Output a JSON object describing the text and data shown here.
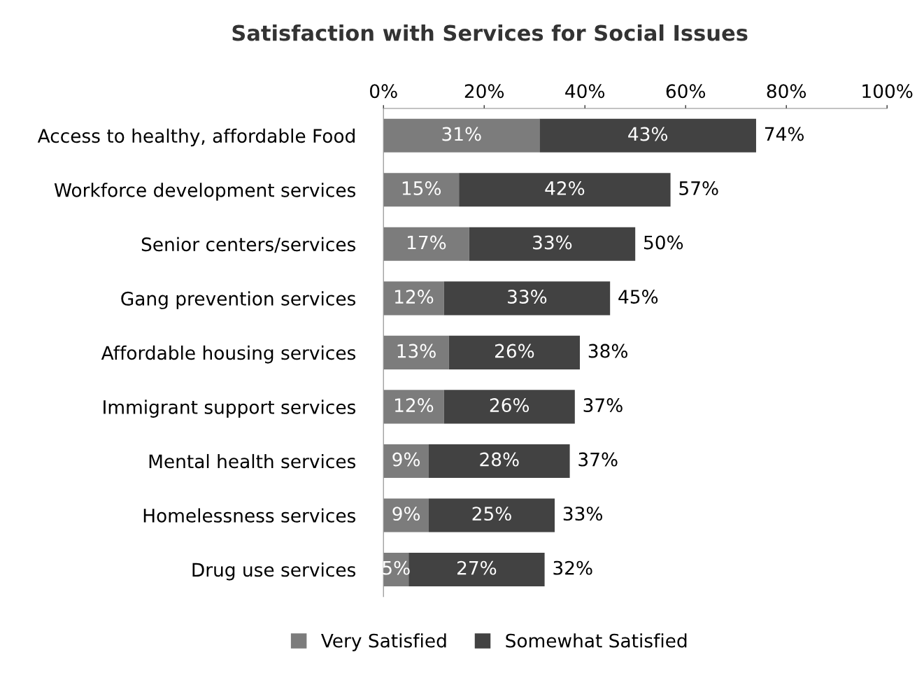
{
  "chart_data": {
    "type": "bar",
    "orientation": "horizontal",
    "stacked": true,
    "title": "Satisfaction with Services for Social Issues",
    "categories": [
      "Access to healthy, affordable Food",
      "Workforce development services",
      "Senior centers/services",
      "Gang prevention services",
      "Affordable housing services",
      "Immigrant support services",
      "Mental health services",
      "Homelessness services",
      "Drug use services"
    ],
    "series": [
      {
        "name": "Very Satisfied",
        "color": "#7c7c7c",
        "values": [
          31,
          15,
          17,
          12,
          13,
          12,
          9,
          9,
          5
        ],
        "value_labels": [
          "31%",
          "15%",
          "17%",
          "12%",
          "13%",
          "12%",
          "9%",
          "9%",
          "5%"
        ]
      },
      {
        "name": "Somewhat Satisfied",
        "color": "#424242",
        "values": [
          43,
          42,
          33,
          33,
          26,
          26,
          28,
          25,
          27
        ],
        "value_labels": [
          "43%",
          "42%",
          "33%",
          "33%",
          "26%",
          "26%",
          "28%",
          "25%",
          "27%"
        ]
      }
    ],
    "totals": [
      "74%",
      "57%",
      "50%",
      "45%",
      "38%",
      "37%",
      "37%",
      "33%",
      "32%"
    ],
    "xlim": [
      0,
      100
    ],
    "xticks": [
      {
        "value": 0,
        "label": "0%"
      },
      {
        "value": 20,
        "label": "20%"
      },
      {
        "value": 40,
        "label": "40%"
      },
      {
        "value": 60,
        "label": "60%"
      },
      {
        "value": 80,
        "label": "80%"
      },
      {
        "value": 100,
        "label": "100%"
      }
    ],
    "legend": "bottom"
  }
}
